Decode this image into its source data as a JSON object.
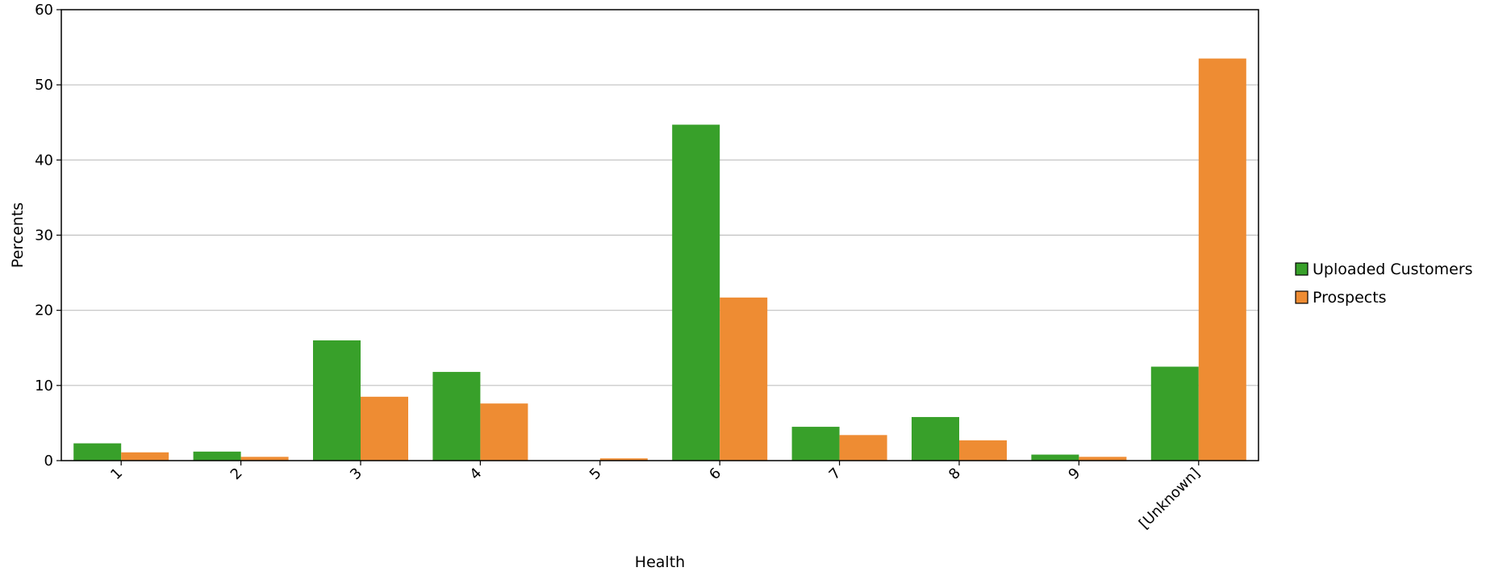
{
  "chart_data": {
    "type": "bar",
    "title": "",
    "xlabel": "Health",
    "ylabel": "Percents",
    "categories": [
      "1",
      "2",
      "3",
      "4",
      "5",
      "6",
      "7",
      "8",
      "9",
      "[Unknown]"
    ],
    "ylim": [
      0,
      60
    ],
    "yticks": [
      "0",
      "10",
      "20",
      "30",
      "40",
      "50",
      "60"
    ],
    "grid": true,
    "legend_position": "right",
    "series": [
      {
        "name": "Uploaded Customers",
        "color": "#38a02a",
        "values": [
          2.3,
          1.2,
          16.0,
          11.8,
          0.0,
          44.7,
          4.5,
          5.8,
          0.8,
          12.5
        ]
      },
      {
        "name": "Prospects",
        "color": "#ee8c33",
        "values": [
          1.1,
          0.5,
          8.5,
          7.6,
          0.3,
          21.7,
          3.4,
          2.7,
          0.5,
          53.5
        ]
      }
    ]
  }
}
